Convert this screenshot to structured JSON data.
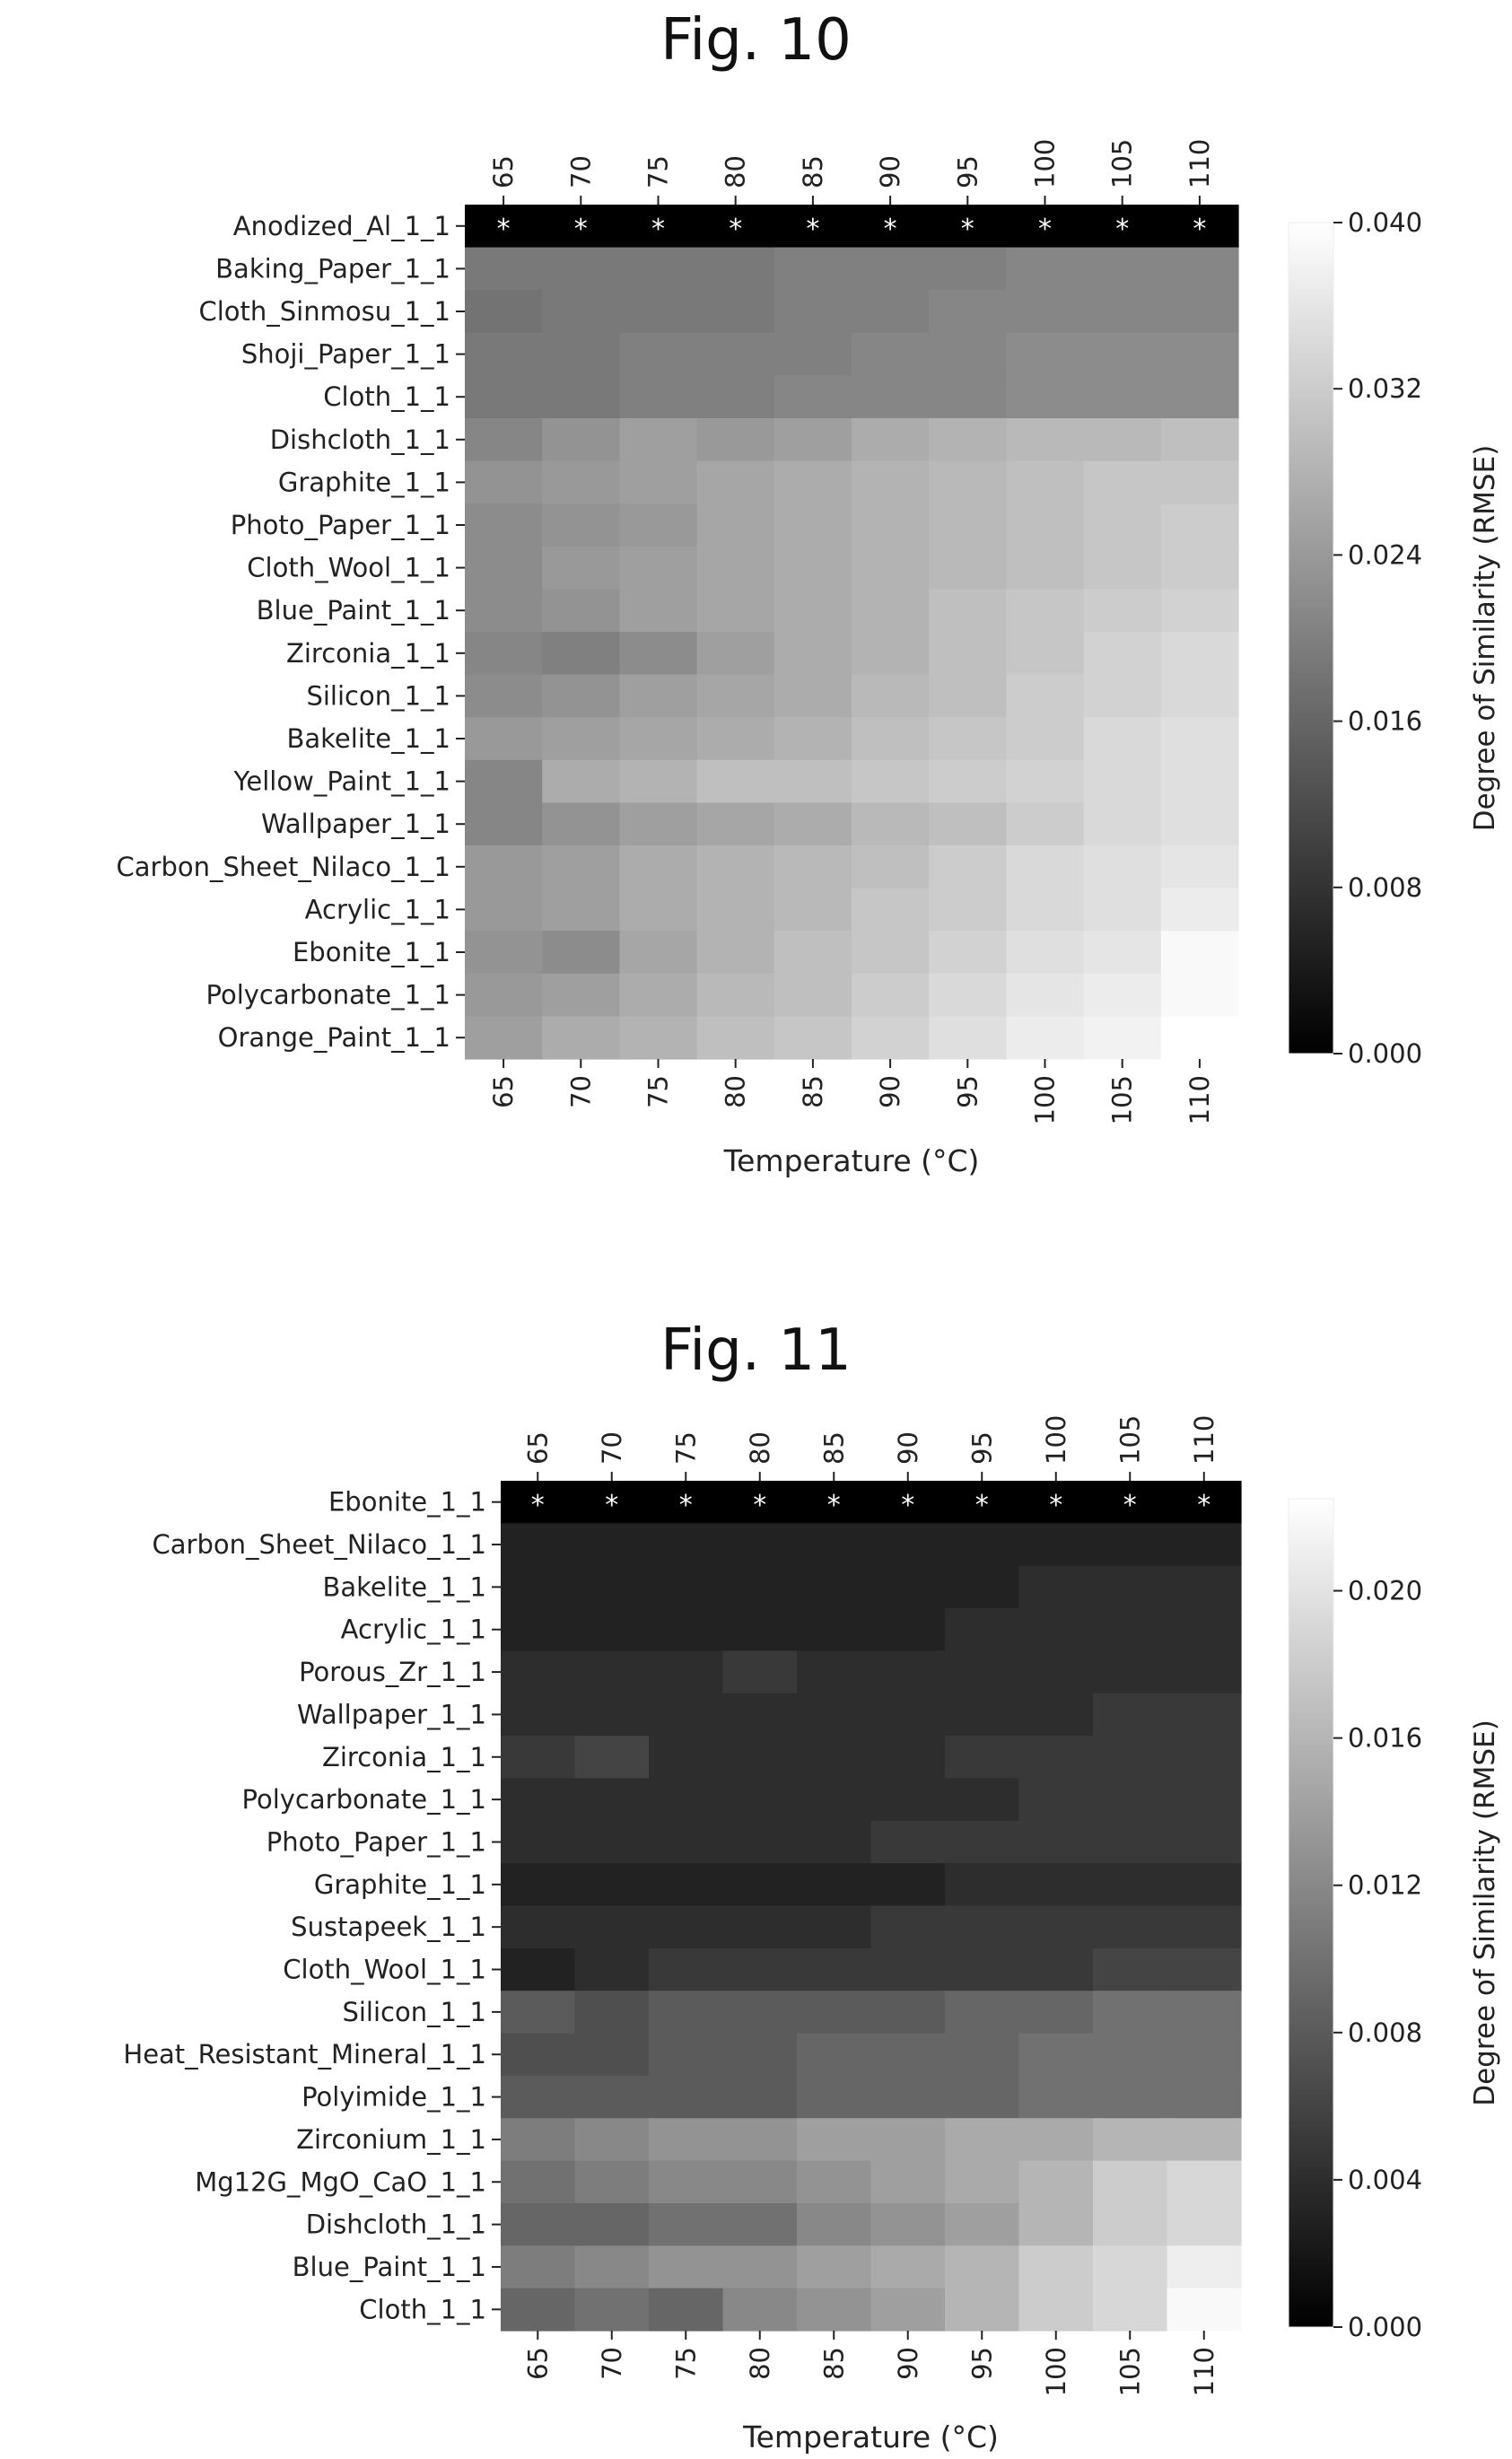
{
  "chart_data": [
    {
      "type": "heatmap",
      "title": "Fig. 10",
      "xlabel": "Temperature (°C)",
      "colorbar_label": "Degree of Similarity (RMSE)",
      "colorbar_ticks": [
        "0.000",
        "0.008",
        "0.016",
        "0.024",
        "0.032",
        "0.040"
      ],
      "vmin": 0.0,
      "vmax": 0.04,
      "colormap": "gray",
      "x": [
        "65",
        "70",
        "75",
        "80",
        "85",
        "90",
        "95",
        "100",
        "105",
        "110"
      ],
      "y": [
        "Anodized_Al_1_1",
        "Baking_Paper_1_1",
        "Cloth_Sinmosu_1_1",
        "Shoji_Paper_1_1",
        "Cloth_1_1",
        "Dishcloth_1_1",
        "Graphite_1_1",
        "Photo_Paper_1_1",
        "Cloth_Wool_1_1",
        "Blue_Paint_1_1",
        "Zirconia_1_1",
        "Silicon_1_1",
        "Bakelite_1_1",
        "Yellow_Paint_1_1",
        "Wallpaper_1_1",
        "Carbon_Sheet_Nilaco_1_1",
        "Acrylic_1_1",
        "Ebonite_1_1",
        "Polycarbonate_1_1",
        "Orange_Paint_1_1"
      ],
      "marker": "*",
      "marked_row": 0,
      "values": [
        [
          0.0,
          0.0,
          0.0,
          0.0,
          0.0,
          0.0,
          0.0,
          0.0,
          0.0,
          0.0
        ],
        [
          0.019,
          0.019,
          0.019,
          0.019,
          0.02,
          0.02,
          0.02,
          0.021,
          0.021,
          0.021
        ],
        [
          0.018,
          0.019,
          0.019,
          0.019,
          0.02,
          0.02,
          0.021,
          0.021,
          0.021,
          0.021
        ],
        [
          0.019,
          0.019,
          0.02,
          0.02,
          0.02,
          0.021,
          0.021,
          0.022,
          0.022,
          0.022
        ],
        [
          0.019,
          0.019,
          0.02,
          0.02,
          0.021,
          0.021,
          0.021,
          0.022,
          0.022,
          0.022
        ],
        [
          0.021,
          0.023,
          0.025,
          0.024,
          0.025,
          0.027,
          0.028,
          0.029,
          0.029,
          0.03
        ],
        [
          0.023,
          0.024,
          0.025,
          0.026,
          0.027,
          0.028,
          0.029,
          0.03,
          0.031,
          0.031
        ],
        [
          0.022,
          0.023,
          0.024,
          0.026,
          0.027,
          0.028,
          0.029,
          0.03,
          0.031,
          0.032
        ],
        [
          0.022,
          0.024,
          0.025,
          0.026,
          0.027,
          0.028,
          0.029,
          0.03,
          0.031,
          0.032
        ],
        [
          0.022,
          0.023,
          0.025,
          0.026,
          0.027,
          0.028,
          0.03,
          0.031,
          0.032,
          0.033
        ],
        [
          0.021,
          0.02,
          0.022,
          0.025,
          0.027,
          0.028,
          0.03,
          0.031,
          0.033,
          0.034
        ],
        [
          0.022,
          0.023,
          0.025,
          0.026,
          0.027,
          0.029,
          0.03,
          0.032,
          0.033,
          0.034
        ],
        [
          0.024,
          0.025,
          0.026,
          0.027,
          0.028,
          0.03,
          0.031,
          0.032,
          0.034,
          0.035
        ],
        [
          0.021,
          0.027,
          0.028,
          0.03,
          0.03,
          0.031,
          0.032,
          0.033,
          0.034,
          0.035
        ],
        [
          0.021,
          0.023,
          0.025,
          0.026,
          0.027,
          0.029,
          0.03,
          0.032,
          0.034,
          0.035
        ],
        [
          0.024,
          0.025,
          0.027,
          0.028,
          0.029,
          0.03,
          0.032,
          0.034,
          0.035,
          0.036
        ],
        [
          0.024,
          0.025,
          0.027,
          0.028,
          0.029,
          0.031,
          0.032,
          0.034,
          0.035,
          0.037
        ],
        [
          0.023,
          0.022,
          0.026,
          0.028,
          0.03,
          0.031,
          0.033,
          0.035,
          0.036,
          0.039
        ],
        [
          0.024,
          0.025,
          0.027,
          0.029,
          0.03,
          0.032,
          0.034,
          0.036,
          0.037,
          0.039
        ],
        [
          0.025,
          0.027,
          0.028,
          0.03,
          0.031,
          0.033,
          0.035,
          0.037,
          0.038,
          0.04
        ]
      ]
    },
    {
      "type": "heatmap",
      "title": "Fig. 11",
      "xlabel": "Temperature (°C)",
      "colorbar_label": "Degree of Similarity (RMSE)",
      "colorbar_ticks": [
        "0.000",
        "0.004",
        "0.008",
        "0.012",
        "0.016",
        "0.020"
      ],
      "vmin": 0.0,
      "vmax": 0.0225,
      "colormap": "gray",
      "x": [
        "65",
        "70",
        "75",
        "80",
        "85",
        "90",
        "95",
        "100",
        "105",
        "110"
      ],
      "y": [
        "Ebonite_1_1",
        "Carbon_Sheet_Nilaco_1_1",
        "Bakelite_1_1",
        "Acrylic_1_1",
        "Porous_Zr_1_1",
        "Wallpaper_1_1",
        "Zirconia_1_1",
        "Polycarbonate_1_1",
        "Photo_Paper_1_1",
        "Graphite_1_1",
        "Sustapeek_1_1",
        "Cloth_Wool_1_1",
        "Silicon_1_1",
        "Heat_Resistant_Mineral_1_1",
        "Polyimide_1_1",
        "Zirconium_1_1",
        "Mg12G_MgO_CaO_1_1",
        "Dishcloth_1_1",
        "Blue_Paint_1_1",
        "Cloth_1_1"
      ],
      "marker": "*",
      "marked_row": 0,
      "values": [
        [
          0.0,
          0.0,
          0.0,
          0.0,
          0.0,
          0.0,
          0.0,
          0.0,
          0.0,
          0.0
        ],
        [
          0.003,
          0.003,
          0.003,
          0.003,
          0.003,
          0.003,
          0.003,
          0.003,
          0.003,
          0.003
        ],
        [
          0.003,
          0.003,
          0.003,
          0.003,
          0.003,
          0.003,
          0.003,
          0.004,
          0.004,
          0.004
        ],
        [
          0.003,
          0.003,
          0.003,
          0.003,
          0.003,
          0.003,
          0.004,
          0.004,
          0.004,
          0.004
        ],
        [
          0.004,
          0.004,
          0.004,
          0.005,
          0.004,
          0.004,
          0.004,
          0.004,
          0.004,
          0.004
        ],
        [
          0.004,
          0.004,
          0.004,
          0.004,
          0.004,
          0.004,
          0.004,
          0.004,
          0.005,
          0.005
        ],
        [
          0.005,
          0.006,
          0.004,
          0.004,
          0.004,
          0.004,
          0.005,
          0.005,
          0.005,
          0.005
        ],
        [
          0.004,
          0.004,
          0.004,
          0.004,
          0.004,
          0.004,
          0.004,
          0.005,
          0.005,
          0.005
        ],
        [
          0.004,
          0.004,
          0.004,
          0.004,
          0.004,
          0.005,
          0.005,
          0.005,
          0.005,
          0.005
        ],
        [
          0.003,
          0.003,
          0.003,
          0.003,
          0.003,
          0.003,
          0.004,
          0.004,
          0.004,
          0.004
        ],
        [
          0.004,
          0.004,
          0.004,
          0.004,
          0.004,
          0.005,
          0.005,
          0.005,
          0.005,
          0.005
        ],
        [
          0.003,
          0.004,
          0.005,
          0.005,
          0.005,
          0.005,
          0.005,
          0.005,
          0.006,
          0.006
        ],
        [
          0.008,
          0.007,
          0.008,
          0.008,
          0.008,
          0.008,
          0.009,
          0.009,
          0.01,
          0.01
        ],
        [
          0.007,
          0.007,
          0.008,
          0.008,
          0.009,
          0.009,
          0.009,
          0.01,
          0.01,
          0.01
        ],
        [
          0.008,
          0.008,
          0.008,
          0.008,
          0.009,
          0.009,
          0.009,
          0.01,
          0.01,
          0.01
        ],
        [
          0.011,
          0.012,
          0.013,
          0.013,
          0.014,
          0.014,
          0.015,
          0.015,
          0.016,
          0.016
        ],
        [
          0.01,
          0.011,
          0.012,
          0.012,
          0.013,
          0.014,
          0.015,
          0.016,
          0.018,
          0.019
        ],
        [
          0.009,
          0.009,
          0.01,
          0.01,
          0.012,
          0.013,
          0.014,
          0.016,
          0.018,
          0.019
        ],
        [
          0.011,
          0.012,
          0.013,
          0.013,
          0.014,
          0.015,
          0.016,
          0.018,
          0.019,
          0.021
        ],
        [
          0.009,
          0.01,
          0.009,
          0.012,
          0.013,
          0.014,
          0.016,
          0.018,
          0.019,
          0.022
        ]
      ]
    }
  ]
}
